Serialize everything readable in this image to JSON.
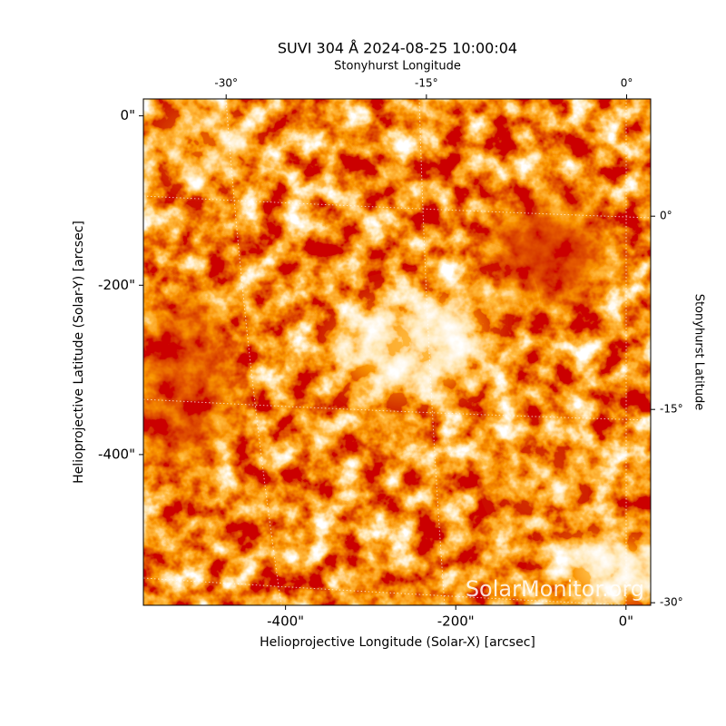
{
  "chart_data": {
    "type": "image",
    "title": "SUVI 304 Å 2024-08-25 10:00:04",
    "x_label": "Helioprojective Longitude (Solar-X) [arcsec]",
    "y_label": "Helioprojective Latitude (Solar-Y) [arcsec]",
    "x2_label": "Stonyhurst Longitude",
    "y2_label": "Stonyhurst Latitude",
    "watermark": "SolarMonitor.org",
    "xlim": [
      -567,
      29
    ],
    "ylim": [
      -578,
      20
    ],
    "xticks": [
      {
        "value": -400,
        "label": "-400\""
      },
      {
        "value": -200,
        "label": "-200\""
      },
      {
        "value": 0,
        "label": "0\""
      }
    ],
    "yticks": [
      {
        "value": 0,
        "label": "0\""
      },
      {
        "value": -200,
        "label": "-200\""
      },
      {
        "value": -400,
        "label": "-400\""
      }
    ],
    "x2lim": [
      -36.2,
      1.8
    ],
    "x2ticks": [
      {
        "value": -30,
        "label": "-30°"
      },
      {
        "value": -15,
        "label": "-15°"
      },
      {
        "value": 0,
        "label": "0°"
      }
    ],
    "y2lim": [
      -30.2,
      9.1
    ],
    "y2ticks": [
      {
        "value": 0,
        "label": "0°"
      },
      {
        "value": -15,
        "label": "-15°"
      },
      {
        "value": -30,
        "label": "-30°"
      }
    ]
  }
}
